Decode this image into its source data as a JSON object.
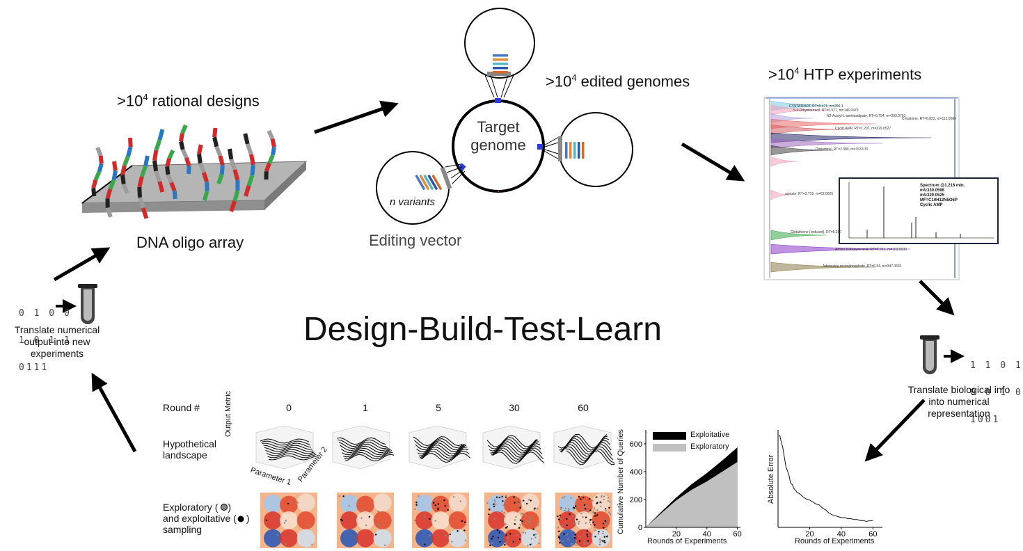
{
  "main_title": "Design-Build-Test-Learn",
  "design": {
    "caption_prefix": ">10",
    "caption_exp": "4",
    "caption_suffix": " rational designs",
    "array_label": "DNA oligo array"
  },
  "build": {
    "center_label_line1": "Target",
    "center_label_line2": "genome",
    "variants_label": "n variants",
    "vector_label": "Editing vector",
    "caption_prefix": ">10",
    "caption_exp": "4",
    "caption_suffix": " edited genomes"
  },
  "test": {
    "caption_prefix": ">10",
    "caption_exp": "4",
    "caption_suffix": " HTP experiments",
    "spectrum_lines": [
      "Spectrum @1.216 min.",
      "m/z330.0598",
      "m/z329.0525",
      "MF=C10H12N5O6P",
      "Cyclic AMP"
    ],
    "peak_labels": [
      "CYSTATINOT, RT=0.471, m=256.1",
      "5-6-Dihydrouracil, RT=0.527, m=146.0475",
      "N2-Acetyl-L-aminoadipate, RT=0.794, m=203.0793",
      "Creatinine, RT=0.823, m=113.0589",
      "Cyclic AMP, RT=1.201, m=329.0527",
      "Dopamine, RT=2.380, m=153.079",
      "acetate, RT=3.719, m=62.0025",
      "Glutathione (reduced), RT=5.267",
      "Amino-isobutyric acid, RT=5.913, m=103.0630",
      "Adenosine monophosphate, RT=6.54, m=347.0631"
    ]
  },
  "learn_right": {
    "binary_lines": [
      "1 1 0 1",
      "0 0 1 0",
      "1001"
    ],
    "caption_lines": [
      "Translate biological info",
      "into numerical",
      "representation"
    ]
  },
  "learn_left": {
    "binary_lines": [
      "0 1 0 0",
      "1 0 1 1",
      "0111"
    ],
    "caption_lines": [
      "Translate numerical",
      "output into new",
      "experiments"
    ]
  },
  "rounds_panel": {
    "round_header": "Round #",
    "rounds": [
      "0",
      "1",
      "5",
      "30",
      "60"
    ],
    "row1_label_lines": [
      "Hypothetical",
      "landscape"
    ],
    "row2_label_lines": [
      "Exploratory (",
      "and exploitative (",
      "sampling"
    ],
    "axis_output_metric": "Output Metric",
    "axis_param1": "Parameter 1",
    "axis_param2": "Parameter 2"
  },
  "chart_data": [
    {
      "type": "area",
      "xlabel": "Rounds of Experiments",
      "ylabel": "Cumulative Number of Queries",
      "xlim": [
        0,
        62
      ],
      "ylim": [
        0,
        700
      ],
      "x_ticks": [
        20,
        40,
        60
      ],
      "y_ticks": [
        0,
        200,
        400,
        600
      ],
      "legend_placement": "top-left",
      "series": [
        {
          "name": "Exploitative",
          "color": "#000000",
          "x": [
            0,
            10,
            20,
            30,
            40,
            50,
            60
          ],
          "values": [
            0,
            110,
            215,
            310,
            390,
            480,
            575
          ]
        },
        {
          "name": "Exploratory",
          "color": "#c0c0c0",
          "x": [
            0,
            10,
            20,
            30,
            40,
            50,
            60
          ],
          "values": [
            0,
            100,
            195,
            270,
            330,
            400,
            470
          ]
        }
      ]
    },
    {
      "type": "line",
      "xlabel": "Rounds of Experiments",
      "ylabel": "Absolute Error",
      "xlim": [
        0,
        66
      ],
      "x_ticks": [
        20,
        40,
        60
      ],
      "series": [
        {
          "x": [
            1,
            2,
            3,
            4,
            5,
            6,
            7,
            8,
            9,
            10,
            12,
            14,
            16,
            18,
            20,
            22,
            24,
            26,
            28,
            30,
            32,
            34,
            36,
            38,
            40,
            42,
            44,
            46,
            48,
            50,
            52,
            54,
            56,
            58,
            60
          ],
          "values": [
            0.95,
            0.88,
            0.82,
            0.72,
            0.62,
            0.58,
            0.53,
            0.45,
            0.44,
            0.4,
            0.36,
            0.34,
            0.31,
            0.29,
            0.28,
            0.26,
            0.24,
            0.23,
            0.2,
            0.18,
            0.15,
            0.13,
            0.12,
            0.11,
            0.1,
            0.1,
            0.09,
            0.09,
            0.08,
            0.08,
            0.07,
            0.07,
            0.06,
            0.07,
            0.07
          ]
        }
      ]
    }
  ]
}
